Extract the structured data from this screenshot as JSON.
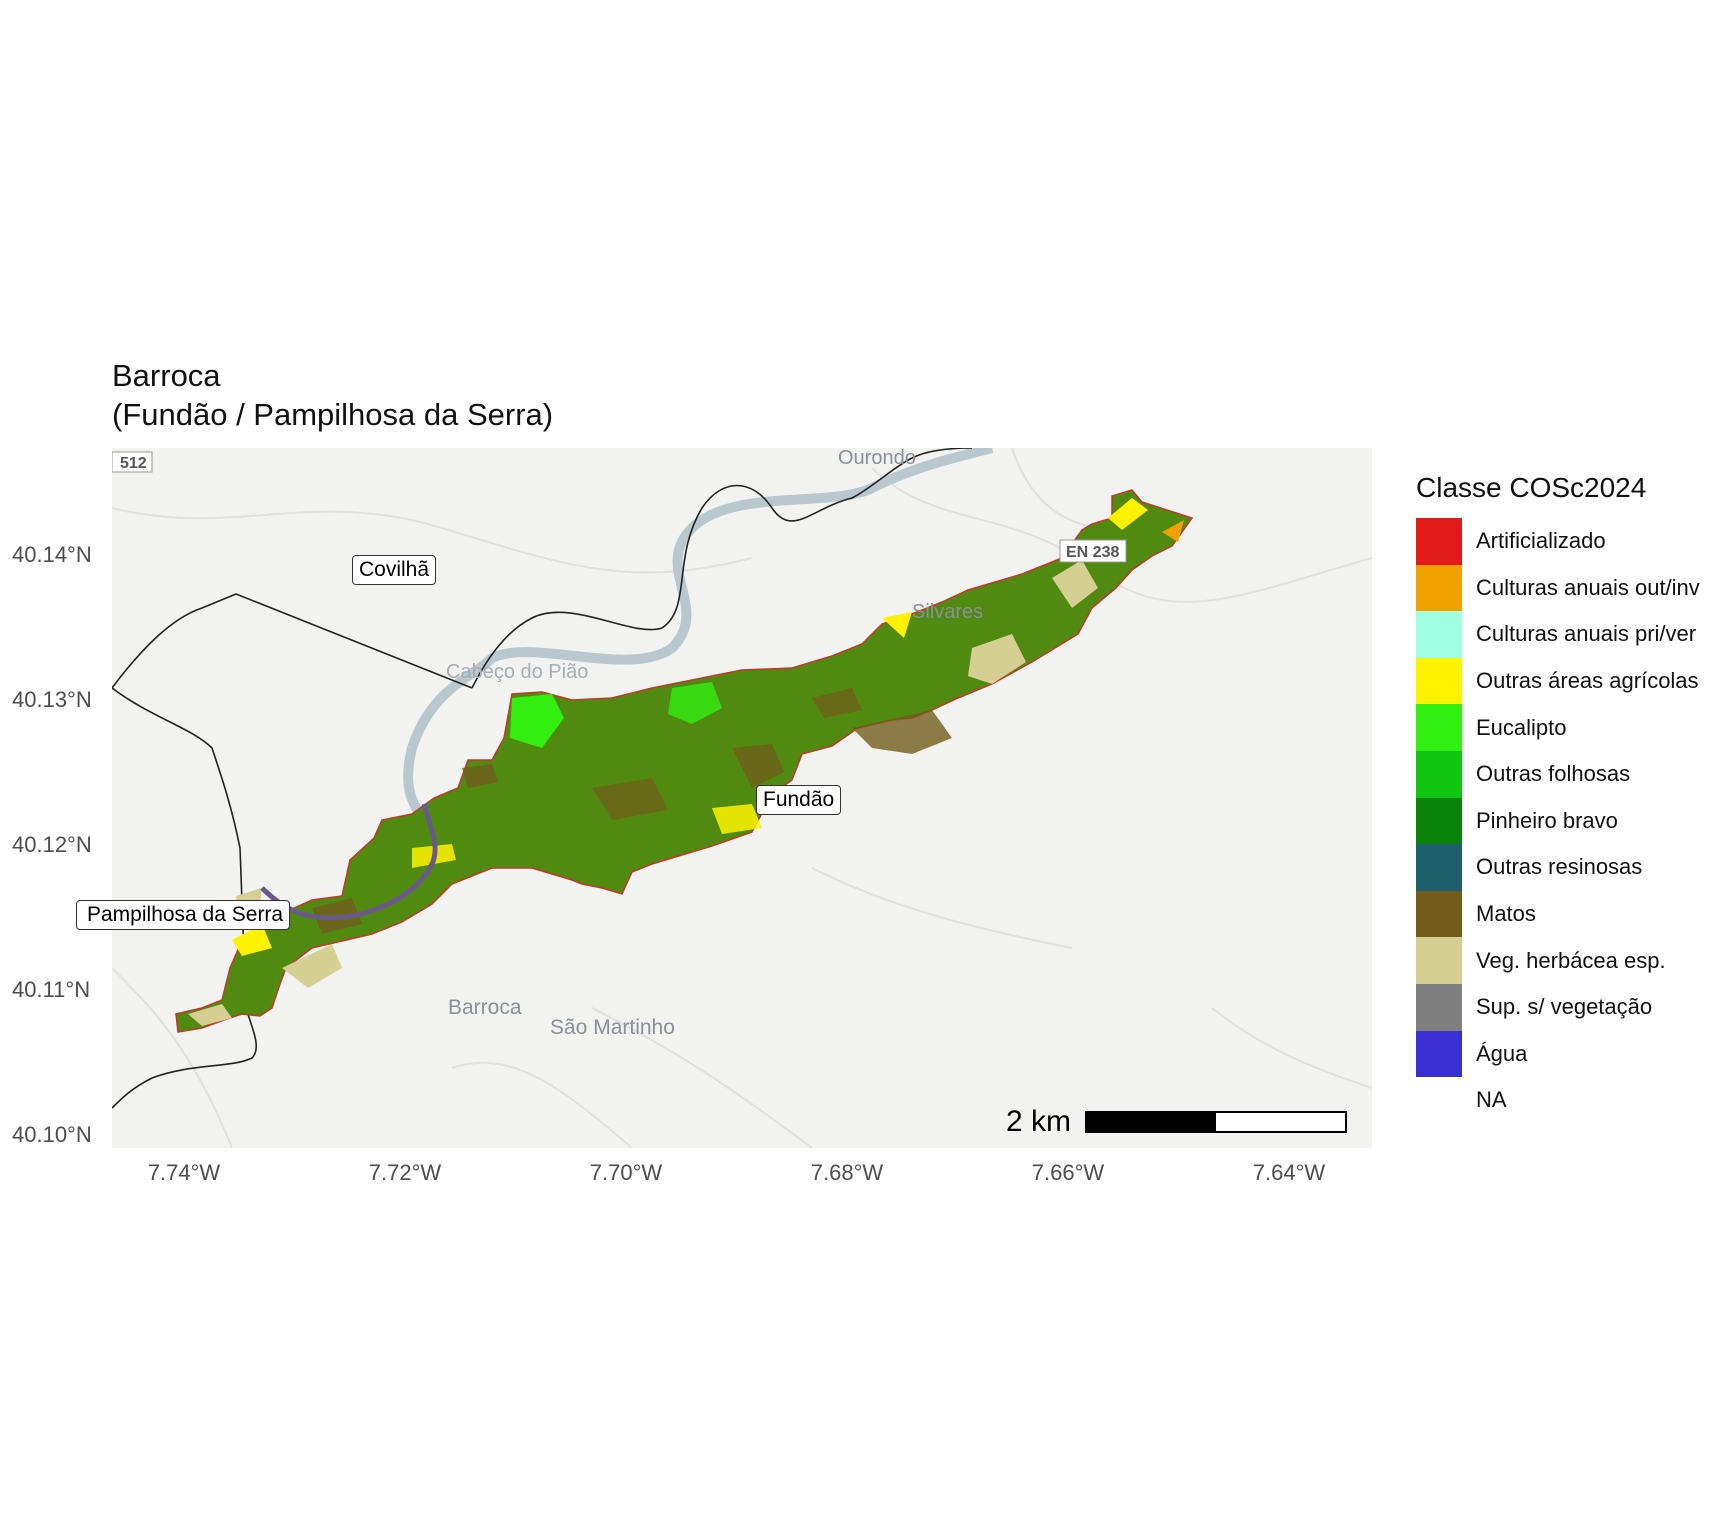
{
  "title": {
    "line1": "Barroca",
    "line2": "(Fundão / Pampilhosa da Serra)"
  },
  "basemap_labels": {
    "road_n512": "512",
    "ourondo": "Ourondo",
    "road_en238": "EN 238",
    "silvares": "Silvares",
    "cabeco_do_piao": "Cabeço do Pião",
    "barroca": "Barroca",
    "sao_martinho": "São Martinho"
  },
  "municipality_labels": {
    "covilha": "Covilhã",
    "fundao": "Fundão",
    "pampilhosa": "Pampilhosa da Serra"
  },
  "axes": {
    "y_ticks": [
      "40.14°N",
      "40.13°N",
      "40.12°N",
      "40.11°N",
      "40.10°N"
    ],
    "x_ticks": [
      "7.74°W",
      "7.72°W",
      "7.70°W",
      "7.68°W",
      "7.66°W",
      "7.64°W"
    ]
  },
  "scalebar": {
    "label": "2 km"
  },
  "legend": {
    "title": "Classe COSc2024",
    "items": [
      {
        "label": "Artificializado",
        "color": "#e31a1c"
      },
      {
        "label": "Culturas anuais out/inv",
        "color": "#f0a000"
      },
      {
        "label": "Culturas anuais pri/ver",
        "color": "#a0ffe0"
      },
      {
        "label": "Outras áreas agrícolas",
        "color": "#fff200"
      },
      {
        "label": "Eucalipto",
        "color": "#33ee11"
      },
      {
        "label": "Outras folhosas",
        "color": "#11c511"
      },
      {
        "label": "Pinheiro bravo",
        "color": "#0b830b"
      },
      {
        "label": "Outras resinosas",
        "color": "#1f5f6b"
      },
      {
        "label": "Matos",
        "color": "#725c1c"
      },
      {
        "label": "Veg. herbácea esp.",
        "color": "#d6cf93"
      },
      {
        "label": "Sup. s/ vegetação",
        "color": "#7f7f7f"
      },
      {
        "label": "Água",
        "color": "#3a2fd0"
      },
      {
        "label": "NA",
        "color": "#ffffff"
      }
    ]
  },
  "colors": {
    "basemap_bg": "#f2f2f0",
    "forest_mix": "#508a10",
    "river": "#b9c8ce"
  }
}
